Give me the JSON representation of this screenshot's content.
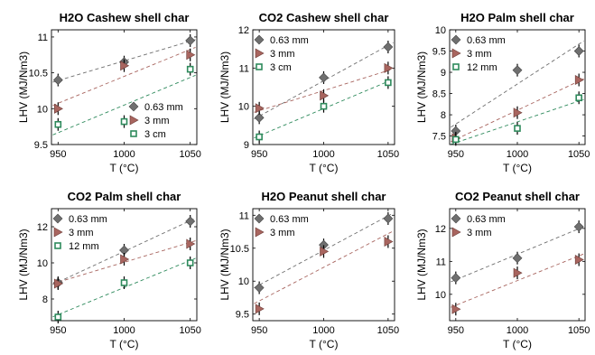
{
  "chart_data": [
    {
      "type": "scatter",
      "title": "H2O Cashew shell char",
      "xlabel": "T (°C)",
      "ylabel": "LHV (MJ/Nm3)",
      "xlim": [
        945,
        1055
      ],
      "ylim": [
        9.5,
        11.1
      ],
      "xticks": [
        950,
        1000,
        1050
      ],
      "yticks": [
        9.5,
        10,
        10.5,
        11
      ],
      "ytick_labels": [
        "9.5",
        "10",
        "10.5",
        "11"
      ],
      "legend_position": "bottom-right",
      "series": [
        {
          "name": "0.63 mm",
          "marker": "diamond",
          "color": "#6f6f6f",
          "x": [
            950,
            1000,
            1050
          ],
          "y": [
            10.4,
            10.65,
            10.95
          ]
        },
        {
          "name": "3 mm",
          "marker": "triangle",
          "color": "#a8655f",
          "x": [
            950,
            1000,
            1050
          ],
          "y": [
            10.0,
            10.6,
            10.75
          ]
        },
        {
          "name": "3 cm",
          "marker": "square",
          "color": "#2e8a5c",
          "x": [
            950,
            1000,
            1050
          ],
          "y": [
            9.78,
            9.82,
            10.55
          ]
        }
      ]
    },
    {
      "type": "scatter",
      "title": "CO2 Cashew shell char",
      "xlabel": "T (°C)",
      "ylabel": "LHV (MJ/Nm3)",
      "xlim": [
        945,
        1055
      ],
      "ylim": [
        9,
        12
      ],
      "xticks": [
        950,
        1000,
        1050
      ],
      "yticks": [
        9,
        10,
        11,
        12
      ],
      "ytick_labels": [
        "9",
        "10",
        "11",
        "12"
      ],
      "legend_position": "top-left",
      "series": [
        {
          "name": "0.63 mm",
          "marker": "diamond",
          "color": "#6f6f6f",
          "x": [
            950,
            1000,
            1050
          ],
          "y": [
            9.7,
            10.75,
            11.55
          ]
        },
        {
          "name": "3 mm",
          "marker": "triangle",
          "color": "#a8655f",
          "x": [
            950,
            1000,
            1050
          ],
          "y": [
            9.95,
            10.28,
            11.0
          ]
        },
        {
          "name": "3 cm",
          "marker": "square",
          "color": "#2e8a5c",
          "x": [
            950,
            1000,
            1050
          ],
          "y": [
            9.2,
            10.0,
            10.62
          ]
        }
      ]
    },
    {
      "type": "scatter",
      "title": "H2O Palm shell char",
      "xlabel": "T (°C)",
      "ylabel": "LHV (MJ/Nm3)",
      "xlim": [
        945,
        1055
      ],
      "ylim": [
        7.3,
        10
      ],
      "xticks": [
        950,
        1000,
        1050
      ],
      "yticks": [
        7.5,
        8,
        8.5,
        9,
        9.5,
        10
      ],
      "ytick_labels": [
        "7.5",
        "8",
        "8.5",
        "9",
        "9.5",
        "10"
      ],
      "legend_position": "top-left",
      "series": [
        {
          "name": "0.63 mm",
          "marker": "diamond",
          "color": "#6f6f6f",
          "x": [
            950,
            1000,
            1050
          ],
          "y": [
            7.62,
            9.05,
            9.5
          ]
        },
        {
          "name": "3 mm",
          "marker": "triangle",
          "color": "#a8655f",
          "x": [
            950,
            1000,
            1050
          ],
          "y": [
            7.45,
            8.05,
            8.82
          ]
        },
        {
          "name": "12 mm",
          "marker": "square",
          "color": "#2e8a5c",
          "x": [
            950,
            1000,
            1050
          ],
          "y": [
            7.42,
            7.68,
            8.4
          ]
        }
      ]
    },
    {
      "type": "scatter",
      "title": "CO2 Palm shell char",
      "xlabel": "T (°C)",
      "ylabel": "LHV (MJ/Nm3)",
      "xlim": [
        945,
        1055
      ],
      "ylim": [
        6.8,
        13
      ],
      "xticks": [
        950,
        1000,
        1050
      ],
      "yticks": [
        8,
        10,
        12
      ],
      "ytick_labels": [
        "8",
        "10",
        "12"
      ],
      "legend_position": "top-left",
      "series": [
        {
          "name": "0.63 mm",
          "marker": "diamond",
          "color": "#6f6f6f",
          "x": [
            950,
            1000,
            1050
          ],
          "y": [
            8.9,
            10.7,
            12.3
          ]
        },
        {
          "name": "3 mm",
          "marker": "triangle",
          "color": "#a8655f",
          "x": [
            950,
            1000,
            1050
          ],
          "y": [
            8.85,
            10.2,
            11.05
          ]
        },
        {
          "name": "12 mm",
          "marker": "square",
          "color": "#2e8a5c",
          "x": [
            950,
            1000,
            1050
          ],
          "y": [
            7.0,
            8.9,
            10.0
          ]
        }
      ]
    },
    {
      "type": "scatter",
      "title": "H2O Peanut shell char",
      "xlabel": "T (°C)",
      "ylabel": "LHV (MJ/Nm3)",
      "xlim": [
        945,
        1055
      ],
      "ylim": [
        9.4,
        11.1
      ],
      "xticks": [
        950,
        1000,
        1050
      ],
      "yticks": [
        9.5,
        10,
        10.5,
        11
      ],
      "ytick_labels": [
        "9.5",
        "10",
        "10.5",
        "11"
      ],
      "legend_position": "top-left",
      "series": [
        {
          "name": "0.63 mm",
          "marker": "diamond",
          "color": "#6f6f6f",
          "x": [
            950,
            1000,
            1050
          ],
          "y": [
            9.9,
            10.55,
            10.95
          ]
        },
        {
          "name": "3 mm",
          "marker": "triangle",
          "color": "#a8655f",
          "x": [
            950,
            1000,
            1050
          ],
          "y": [
            9.58,
            10.45,
            10.6
          ]
        }
      ]
    },
    {
      "type": "scatter",
      "title": "CO2 Peanut shell char",
      "xlabel": "T (°C)",
      "ylabel": "LHV (MJ/Nm3)",
      "xlim": [
        945,
        1055
      ],
      "ylim": [
        9.2,
        12.6
      ],
      "xticks": [
        950,
        1000,
        1050
      ],
      "yticks": [
        10,
        11,
        12
      ],
      "ytick_labels": [
        "10",
        "11",
        "12"
      ],
      "legend_position": "top-left",
      "series": [
        {
          "name": "0.63 mm",
          "marker": "diamond",
          "color": "#6f6f6f",
          "x": [
            950,
            1000,
            1050
          ],
          "y": [
            10.5,
            11.1,
            12.05
          ]
        },
        {
          "name": "3 mm",
          "marker": "triangle",
          "color": "#a8655f",
          "x": [
            950,
            1000,
            1050
          ],
          "y": [
            9.55,
            10.65,
            11.05
          ]
        }
      ]
    }
  ]
}
